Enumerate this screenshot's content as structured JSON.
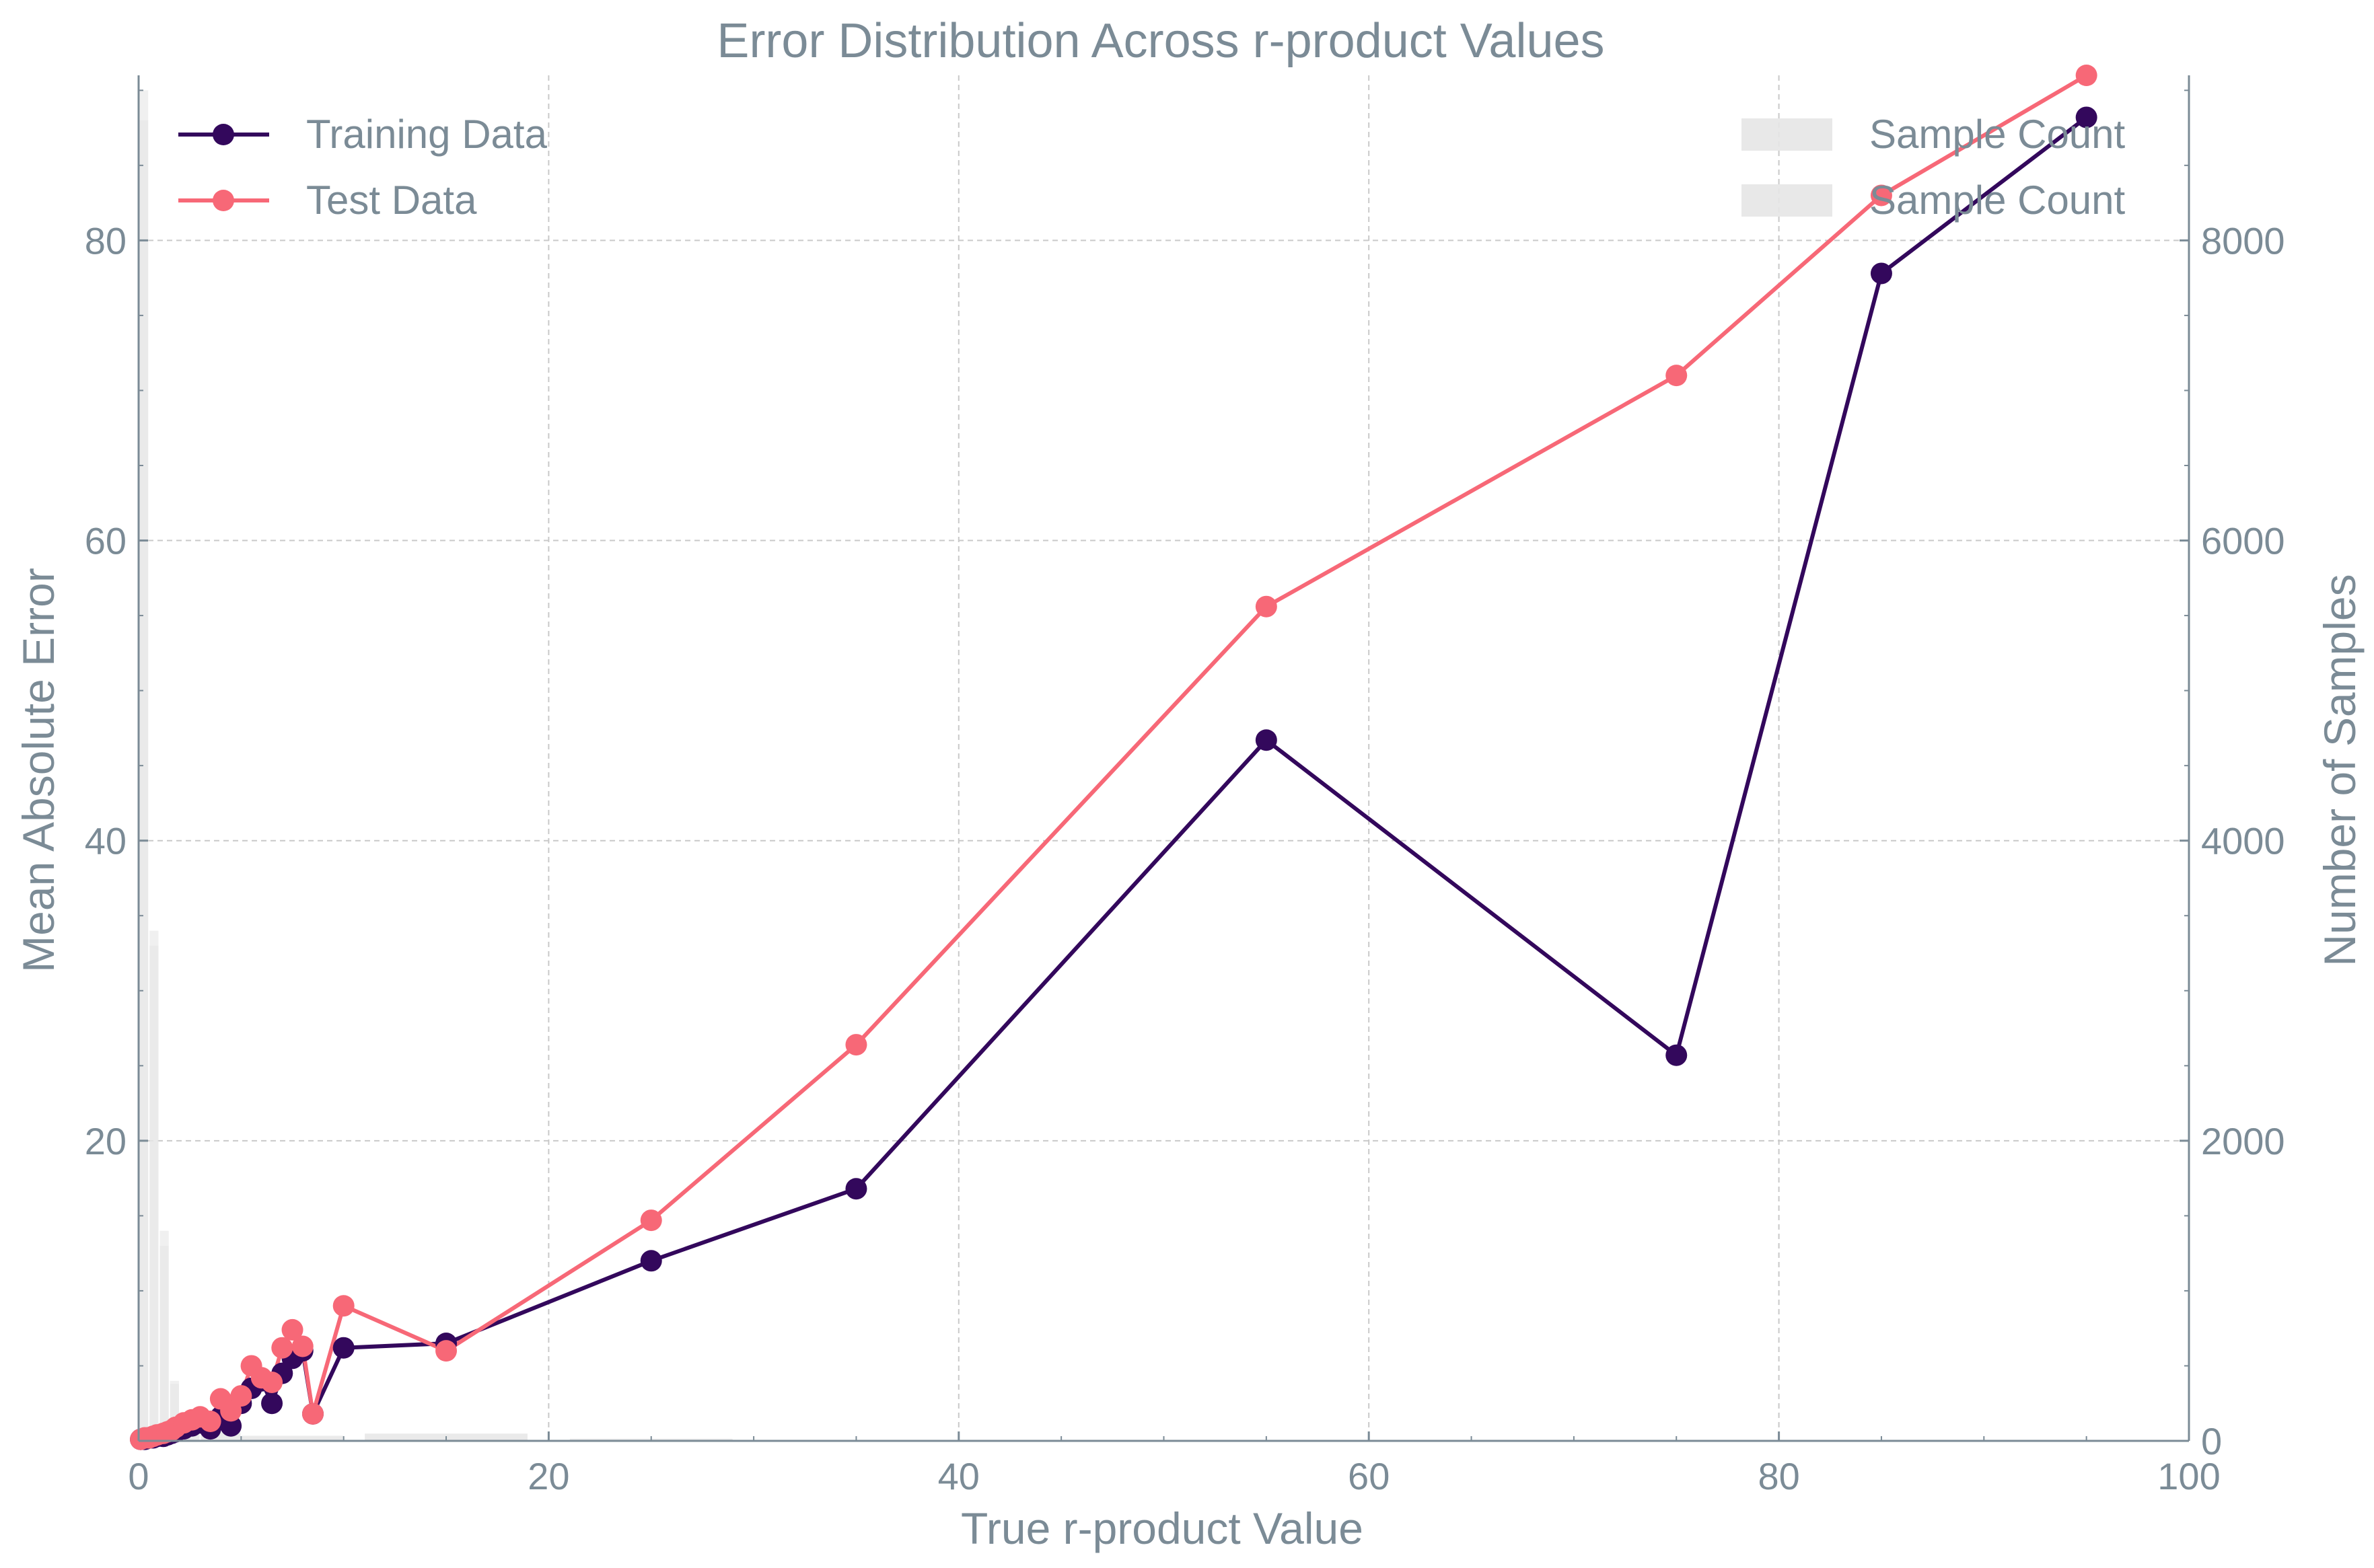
{
  "chart_data": {
    "type": "line",
    "title": "Error Distribution Across r-product Values",
    "xlabel": "True r-product Value",
    "ylabel": "Mean Absolute Error",
    "y2label": "Number of Samples",
    "xlim": [
      0,
      100
    ],
    "ylim": [
      0,
      91
    ],
    "y2lim": [
      0,
      9100
    ],
    "x_ticks": [
      0,
      20,
      40,
      60,
      80,
      100
    ],
    "y_ticks": [
      20,
      40,
      60,
      80
    ],
    "y2_ticks": [
      0,
      2000,
      4000,
      6000,
      8000
    ],
    "grid": true,
    "legend_left": "top-left",
    "legend_right": "top-right",
    "series": [
      {
        "name": "Training Data",
        "color": "#33085c",
        "x": [
          0.1,
          0.3,
          0.5,
          0.7,
          0.9,
          1.2,
          1.4,
          1.6,
          1.8,
          2.2,
          2.6,
          3.0,
          3.5,
          4.0,
          4.5,
          5.0,
          5.5,
          6.0,
          6.5,
          7.0,
          7.5,
          8.0,
          8.5,
          10,
          15,
          25,
          35,
          55,
          75,
          85,
          95
        ],
        "y": [
          0.1,
          0.1,
          0.2,
          0.2,
          0.3,
          0.3,
          0.4,
          0.5,
          0.6,
          0.8,
          1.0,
          1.2,
          0.8,
          1.6,
          1.0,
          2.5,
          3.5,
          4.0,
          2.5,
          4.5,
          5.5,
          6.0,
          1.8,
          6.2,
          6.5,
          12.0,
          16.8,
          46.7,
          25.7,
          77.8,
          88.2
        ]
      },
      {
        "name": "Test Data",
        "color": "#f76877",
        "x": [
          0.1,
          0.3,
          0.5,
          0.7,
          0.9,
          1.2,
          1.4,
          1.6,
          1.8,
          2.2,
          2.6,
          3.0,
          3.5,
          4.0,
          4.5,
          5.0,
          5.5,
          6.0,
          6.5,
          7.0,
          7.5,
          8.0,
          8.5,
          10,
          15,
          25,
          35,
          55,
          75,
          85,
          95
        ],
        "y": [
          0.1,
          0.2,
          0.2,
          0.3,
          0.4,
          0.5,
          0.6,
          0.7,
          0.9,
          1.2,
          1.4,
          1.6,
          1.3,
          2.8,
          2.0,
          3.0,
          5.0,
          4.2,
          3.9,
          6.2,
          7.4,
          6.3,
          1.8,
          9.0,
          6.0,
          14.7,
          26.4,
          55.6,
          71.0,
          83.0,
          91.0
        ]
      }
    ],
    "histogram": [
      {
        "name": "Sample Count",
        "color": "#e6e6e6",
        "bins": [
          {
            "x0": 0,
            "x1": 0.5,
            "count": 9000
          },
          {
            "x0": 0.5,
            "x1": 1.0,
            "count": 3400
          },
          {
            "x0": 1.0,
            "x1": 1.5,
            "count": 1400
          },
          {
            "x0": 1.5,
            "x1": 2.0,
            "count": 400
          },
          {
            "x0": 2.0,
            "x1": 3.0,
            "count": 120
          },
          {
            "x0": 3.0,
            "x1": 5.0,
            "count": 60
          },
          {
            "x0": 5.0,
            "x1": 10.0,
            "count": 35
          },
          {
            "x0": 11.0,
            "x1": 19.0,
            "count": 50
          },
          {
            "x0": 21.0,
            "x1": 29.0,
            "count": 15
          }
        ]
      },
      {
        "name": "Sample Count",
        "color": "#e6e6e6",
        "bins": [
          {
            "x0": 0,
            "x1": 0.5,
            "count": 8800
          },
          {
            "x0": 0.5,
            "x1": 1.0,
            "count": 3300
          },
          {
            "x0": 1.0,
            "x1": 1.5,
            "count": 1300
          },
          {
            "x0": 1.5,
            "x1": 2.0,
            "count": 380
          },
          {
            "x0": 2.0,
            "x1": 3.0,
            "count": 110
          },
          {
            "x0": 3.0,
            "x1": 5.0,
            "count": 55
          },
          {
            "x0": 5.0,
            "x1": 10.0,
            "count": 30
          },
          {
            "x0": 11.0,
            "x1": 19.0,
            "count": 45
          },
          {
            "x0": 21.0,
            "x1": 29.0,
            "count": 12
          }
        ]
      }
    ]
  }
}
